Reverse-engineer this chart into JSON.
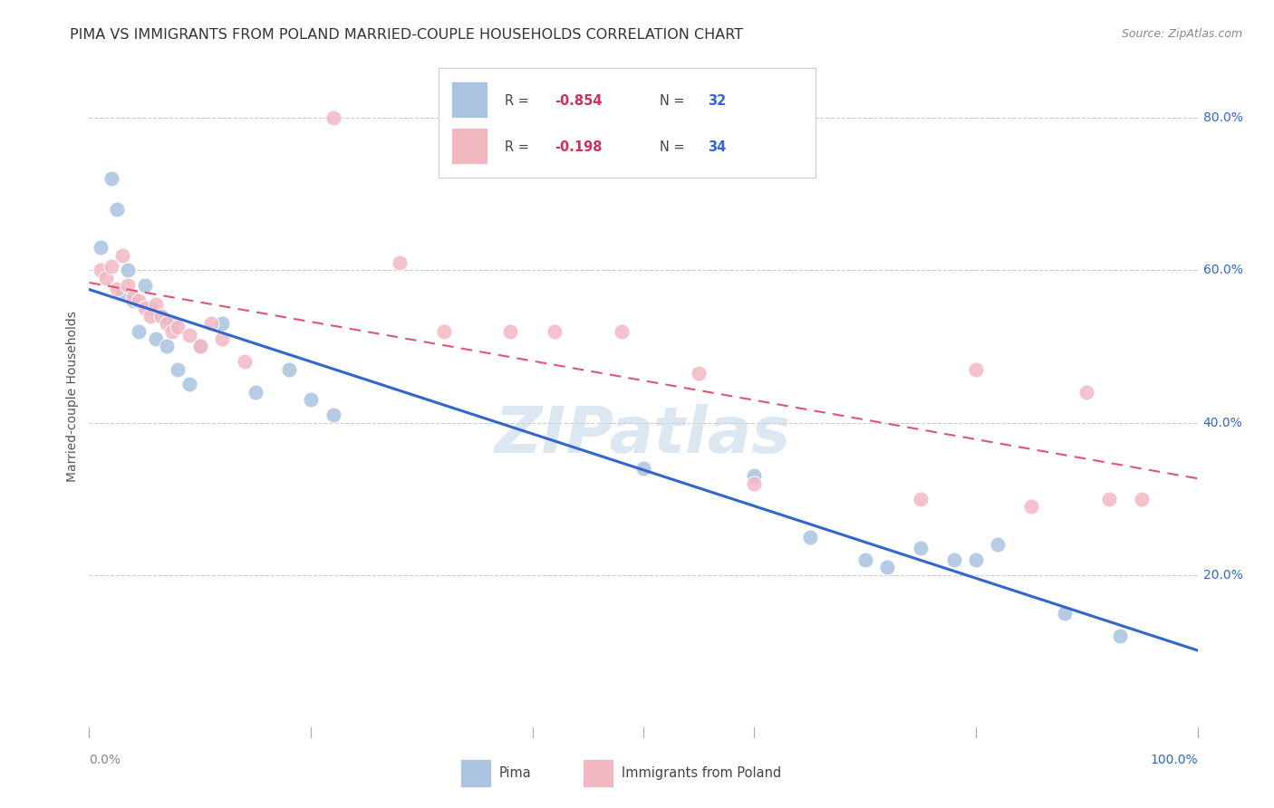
{
  "title": "PIMA VS IMMIGRANTS FROM POLAND MARRIED-COUPLE HOUSEHOLDS CORRELATION CHART",
  "source": "Source: ZipAtlas.com",
  "ylabel": "Married-couple Households",
  "watermark": "ZIPatlas",
  "legend_blue_r": "R = -0.854",
  "legend_blue_n": "N = 32",
  "legend_pink_r": "R = -0.198",
  "legend_pink_n": "N = 34",
  "legend_label_blue": "Pima",
  "legend_label_pink": "Immigrants from Poland",
  "blue_color": "#aac4e0",
  "pink_color": "#f2b8c2",
  "blue_line_color": "#3366cc",
  "pink_line_color": "#e05575",
  "r_text_color": "#cc3355",
  "n_text_color": "#3366cc",
  "blue_scatter": [
    [
      1.0,
      63.0
    ],
    [
      2.0,
      72.0
    ],
    [
      2.5,
      68.0
    ],
    [
      3.0,
      57.0
    ],
    [
      3.5,
      60.0
    ],
    [
      4.0,
      56.0
    ],
    [
      4.5,
      52.0
    ],
    [
      5.0,
      58.0
    ],
    [
      5.5,
      55.0
    ],
    [
      6.0,
      51.0
    ],
    [
      6.5,
      54.0
    ],
    [
      7.0,
      50.0
    ],
    [
      7.5,
      53.0
    ],
    [
      8.0,
      47.0
    ],
    [
      9.0,
      45.0
    ],
    [
      10.0,
      50.0
    ],
    [
      12.0,
      53.0
    ],
    [
      15.0,
      44.0
    ],
    [
      18.0,
      47.0
    ],
    [
      20.0,
      43.0
    ],
    [
      22.0,
      41.0
    ],
    [
      50.0,
      34.0
    ],
    [
      60.0,
      33.0
    ],
    [
      65.0,
      25.0
    ],
    [
      70.0,
      22.0
    ],
    [
      72.0,
      21.0
    ],
    [
      75.0,
      23.5
    ],
    [
      78.0,
      22.0
    ],
    [
      80.0,
      22.0
    ],
    [
      82.0,
      24.0
    ],
    [
      88.0,
      15.0
    ],
    [
      93.0,
      12.0
    ]
  ],
  "pink_scatter": [
    [
      1.0,
      60.0
    ],
    [
      1.5,
      59.0
    ],
    [
      2.0,
      60.5
    ],
    [
      2.5,
      57.5
    ],
    [
      3.0,
      62.0
    ],
    [
      3.5,
      58.0
    ],
    [
      4.0,
      56.5
    ],
    [
      4.5,
      56.0
    ],
    [
      5.0,
      55.0
    ],
    [
      5.5,
      54.0
    ],
    [
      6.0,
      55.5
    ],
    [
      6.5,
      54.0
    ],
    [
      7.0,
      53.0
    ],
    [
      7.5,
      52.0
    ],
    [
      8.0,
      52.5
    ],
    [
      9.0,
      51.5
    ],
    [
      10.0,
      50.0
    ],
    [
      11.0,
      53.0
    ],
    [
      12.0,
      51.0
    ],
    [
      14.0,
      48.0
    ],
    [
      22.0,
      80.0
    ],
    [
      28.0,
      61.0
    ],
    [
      32.0,
      52.0
    ],
    [
      38.0,
      52.0
    ],
    [
      42.0,
      52.0
    ],
    [
      48.0,
      52.0
    ],
    [
      55.0,
      46.5
    ],
    [
      60.0,
      32.0
    ],
    [
      75.0,
      30.0
    ],
    [
      80.0,
      47.0
    ],
    [
      85.0,
      29.0
    ],
    [
      90.0,
      44.0
    ],
    [
      92.0,
      30.0
    ],
    [
      95.0,
      30.0
    ]
  ],
  "xlim": [
    0,
    100
  ],
  "ylim": [
    0,
    87
  ],
  "ytick_positions": [
    20,
    40,
    60,
    80
  ],
  "ytick_labels": [
    "20.0%",
    "40.0%",
    "60.0%",
    "80.0%"
  ],
  "grid_color": "#cccccc",
  "background_color": "#ffffff",
  "title_fontsize": 11.5,
  "axis_label_fontsize": 10,
  "tick_fontsize": 10,
  "source_fontsize": 9,
  "watermark_fontsize": 52,
  "watermark_color": "#c5d8ea",
  "watermark_alpha": 0.6
}
